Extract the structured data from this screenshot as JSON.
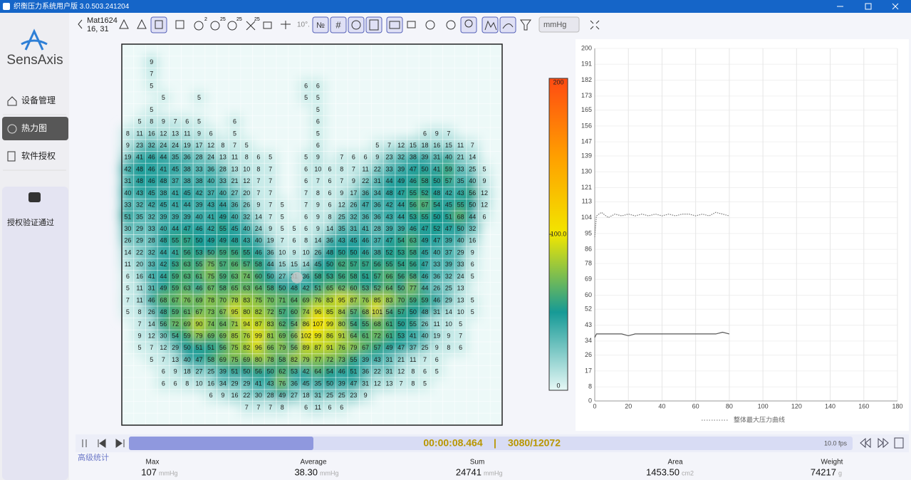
{
  "window": {
    "title": "织衡压力系统用户版 3.0.503.241204"
  },
  "sidebar": {
    "logo": "SensAxis",
    "menu": [
      "设备管理",
      "热力图",
      "软件授权"
    ],
    "status": "授权验证通过"
  },
  "toolbar": {
    "mat": "Mat1624",
    "position": "16, 31",
    "badges": [
      "2",
      "25",
      "25",
      "25"
    ],
    "angle": "10°.",
    "number_button": "№",
    "grid_button": "#",
    "unit": "mmHg"
  },
  "heatmap": {
    "rows": [
      [
        null,
        null,
        9
      ],
      [
        null,
        null,
        7
      ],
      [
        null,
        null,
        5,
        null,
        null,
        null,
        null,
        null,
        null,
        null,
        null,
        null,
        null,
        null,
        null,
        6,
        6
      ],
      [
        null,
        null,
        null,
        5,
        null,
        null,
        5,
        null,
        null,
        null,
        null,
        null,
        null,
        null,
        null,
        5,
        5
      ],
      [
        null,
        null,
        5,
        null,
        null,
        null,
        null,
        null,
        null,
        null,
        null,
        null,
        null,
        null,
        null,
        null,
        5
      ],
      [
        null,
        5,
        8,
        9,
        7,
        6,
        5,
        null,
        null,
        6,
        null,
        null,
        null,
        null,
        null,
        null,
        6
      ],
      [
        8,
        11,
        16,
        12,
        13,
        11,
        9,
        6,
        null,
        5,
        null,
        null,
        null,
        null,
        null,
        null,
        5,
        null,
        null,
        null,
        null,
        null,
        null,
        null,
        null,
        6,
        9,
        7
      ],
      [
        9,
        23,
        32,
        24,
        24,
        19,
        17,
        12,
        8,
        7,
        5,
        null,
        null,
        null,
        null,
        null,
        6,
        null,
        null,
        null,
        null,
        5,
        7,
        12,
        15,
        18,
        16,
        15,
        11,
        7
      ],
      [
        19,
        41,
        46,
        44,
        35,
        36,
        28,
        24,
        13,
        11,
        8,
        6,
        5,
        null,
        null,
        5,
        9,
        null,
        7,
        6,
        6,
        9,
        23,
        32,
        38,
        39,
        31,
        40,
        21,
        14
      ],
      [
        42,
        48,
        46,
        41,
        45,
        38,
        33,
        36,
        28,
        13,
        10,
        8,
        7,
        null,
        null,
        6,
        10,
        6,
        8,
        7,
        11,
        22,
        33,
        39,
        47,
        50,
        41,
        59,
        33,
        25,
        5
      ],
      [
        31,
        48,
        46,
        48,
        37,
        38,
        38,
        40,
        33,
        21,
        12,
        7,
        7,
        null,
        null,
        6,
        7,
        6,
        7,
        9,
        22,
        31,
        44,
        49,
        46,
        58,
        50,
        57,
        35,
        40,
        9
      ],
      [
        40,
        43,
        45,
        38,
        41,
        45,
        42,
        37,
        40,
        27,
        20,
        7,
        7,
        null,
        null,
        7,
        8,
        6,
        9,
        17,
        36,
        34,
        48,
        47,
        55,
        52,
        48,
        42,
        43,
        56,
        12
      ],
      [
        33,
        32,
        42,
        45,
        41,
        44,
        39,
        43,
        44,
        36,
        26,
        9,
        7,
        5,
        null,
        7,
        9,
        6,
        12,
        26,
        47,
        36,
        42,
        44,
        56,
        67,
        54,
        45,
        55,
        50,
        12
      ],
      [
        51,
        35,
        32,
        39,
        39,
        39,
        40,
        41,
        49,
        40,
        32,
        14,
        7,
        5,
        null,
        6,
        9,
        8,
        25,
        32,
        36,
        36,
        43,
        44,
        53,
        55,
        50,
        51,
        68,
        44,
        6
      ],
      [
        30,
        29,
        33,
        40,
        44,
        47,
        46,
        42,
        55,
        45,
        40,
        24,
        9,
        5,
        5,
        6,
        9,
        14,
        35,
        31,
        41,
        28,
        39,
        39,
        46,
        47,
        52,
        47,
        50,
        32
      ],
      [
        26,
        29,
        28,
        48,
        55,
        57,
        50,
        49,
        49,
        48,
        43,
        40,
        19,
        7,
        6,
        8,
        14,
        36,
        43,
        45,
        46,
        37,
        47,
        54,
        63,
        49,
        47,
        39,
        40,
        16
      ],
      [
        14,
        22,
        32,
        44,
        41,
        56,
        53,
        50,
        59,
        56,
        55,
        46,
        36,
        10,
        9,
        10,
        26,
        48,
        50,
        50,
        46,
        38,
        52,
        53,
        58,
        45,
        40,
        37,
        29,
        9
      ],
      [
        11,
        20,
        33,
        42,
        53,
        63,
        55,
        75,
        57,
        66,
        57,
        58,
        44,
        15,
        15,
        14,
        45,
        50,
        62,
        57,
        57,
        56,
        55,
        54,
        56,
        47,
        33,
        39,
        33,
        6
      ],
      [
        6,
        16,
        41,
        44,
        59,
        63,
        61,
        75,
        59,
        63,
        74,
        60,
        50,
        27,
        31,
        36,
        58,
        53,
        56,
        58,
        51,
        57,
        66,
        56,
        58,
        46,
        36,
        32,
        24,
        5
      ],
      [
        5,
        11,
        31,
        49,
        59,
        63,
        46,
        67,
        58,
        65,
        63,
        64,
        58,
        50,
        48,
        42,
        51,
        65,
        62,
        60,
        53,
        52,
        64,
        50,
        77,
        44,
        26,
        25,
        13
      ],
      [
        7,
        11,
        46,
        68,
        67,
        76,
        69,
        78,
        70,
        78,
        83,
        75,
        70,
        71,
        64,
        69,
        76,
        83,
        95,
        87,
        76,
        85,
        83,
        70,
        59,
        59,
        46,
        29,
        13,
        5
      ],
      [
        5,
        8,
        26,
        48,
        59,
        61,
        67,
        73,
        67,
        95,
        80,
        82,
        72,
        57,
        60,
        74,
        96,
        85,
        84,
        57,
        68,
        101,
        54,
        57,
        50,
        48,
        31,
        14,
        10,
        5
      ],
      [
        null,
        7,
        14,
        56,
        72,
        69,
        90,
        74,
        64,
        71,
        94,
        87,
        83,
        62,
        54,
        86,
        107,
        99,
        80,
        54,
        55,
        68,
        61,
        50,
        55,
        26,
        11,
        10,
        5
      ],
      [
        null,
        9,
        12,
        30,
        54,
        59,
        79,
        69,
        69,
        85,
        76,
        99,
        81,
        69,
        66,
        102,
        99,
        86,
        91,
        64,
        61,
        72,
        61,
        53,
        41,
        40,
        19,
        9,
        7
      ],
      [
        null,
        5,
        7,
        12,
        29,
        50,
        51,
        51,
        56,
        75,
        82,
        96,
        66,
        79,
        56,
        89,
        87,
        91,
        76,
        79,
        67,
        57,
        49,
        47,
        37,
        25,
        9,
        8,
        6
      ],
      [
        null,
        null,
        5,
        7,
        13,
        40,
        47,
        58,
        69,
        75,
        69,
        80,
        78,
        58,
        82,
        79,
        77,
        72,
        73,
        55,
        39,
        43,
        31,
        21,
        11,
        7,
        6
      ],
      [
        null,
        null,
        null,
        6,
        9,
        18,
        27,
        25,
        39,
        51,
        50,
        56,
        50,
        62,
        53,
        42,
        64,
        54,
        46,
        51,
        36,
        22,
        31,
        12,
        8,
        6,
        5
      ],
      [
        null,
        null,
        null,
        6,
        6,
        8,
        10,
        16,
        34,
        29,
        29,
        41,
        43,
        76,
        36,
        45,
        35,
        50,
        39,
        47,
        31,
        12,
        13,
        7,
        8,
        5
      ],
      [
        null,
        null,
        null,
        null,
        null,
        null,
        null,
        6,
        9,
        16,
        22,
        30,
        28,
        49,
        27,
        18,
        31,
        25,
        25,
        23,
        9
      ],
      [
        null,
        null,
        null,
        null,
        null,
        null,
        null,
        null,
        null,
        null,
        7,
        7,
        7,
        8,
        null,
        6,
        11,
        6,
        6
      ]
    ],
    "colorbar": {
      "ticks": [
        0,
        {
          "value": 100,
          "label": "100.0"
        },
        200
      ],
      "colors": [
        "#e6f8f6",
        "#169a96",
        "#f2e600",
        "#ff9f00",
        "#ff4a12"
      ]
    }
  },
  "chart_data": {
    "type": "line",
    "x": [
      0,
      1,
      4,
      8,
      12,
      16,
      20,
      24,
      28,
      32,
      36,
      40,
      44,
      48,
      52,
      56,
      60,
      64,
      68,
      72,
      76,
      80
    ],
    "series": [
      {
        "name": "整体最大压力曲线",
        "color": "#777777",
        "values": [
          93,
          105,
          107,
          104,
          106,
          105,
          106,
          105,
          106,
          105,
          106,
          105,
          106,
          105,
          106,
          106,
          105,
          106,
          105,
          107,
          106,
          105
        ]
      },
      {
        "color": "#555555",
        "values": [
          36,
          38,
          38,
          38,
          38,
          38,
          37,
          38,
          38,
          38,
          38,
          38,
          38,
          38,
          38,
          38,
          38,
          38,
          38,
          38,
          39,
          38
        ]
      }
    ],
    "xlim": [
      0,
      180
    ],
    "xticks": [
      0,
      20,
      40,
      60,
      80,
      100,
      120,
      140,
      160,
      180
    ],
    "ylim": [
      0,
      200
    ],
    "yticks": [
      0,
      8,
      17,
      26,
      34,
      43,
      52,
      60,
      69,
      78,
      86,
      95,
      104,
      113,
      121,
      130,
      139,
      147,
      156,
      165,
      173,
      182,
      191,
      200
    ],
    "grid": true
  },
  "playback": {
    "time": "00:00:08.464",
    "separator": "|",
    "frame": "3080/12072",
    "fps": "10.0 fps"
  },
  "stats": {
    "title": "高级统计",
    "items": [
      {
        "label": "Max",
        "value": "107",
        "unit": "mmHg"
      },
      {
        "label": "Average",
        "value": "38.30",
        "unit": "mmHg"
      },
      {
        "label": "Sum",
        "value": "24741",
        "unit": "mmHg"
      },
      {
        "label": "Area",
        "value": "1453.50",
        "unit": "cm2"
      },
      {
        "label": "Weight",
        "value": "74217",
        "unit": "g"
      }
    ]
  }
}
